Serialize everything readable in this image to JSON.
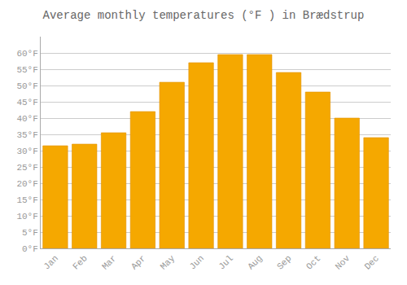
{
  "chart_data": {
    "type": "bar",
    "title": "Average monthly temperatures (°F ) in Brædstrup",
    "categories": [
      "Jan",
      "Feb",
      "Mar",
      "Apr",
      "May",
      "Jun",
      "Jul",
      "Aug",
      "Sep",
      "Oct",
      "Nov",
      "Dec"
    ],
    "values": [
      31.5,
      32.0,
      35.5,
      42.0,
      51.0,
      57.0,
      59.5,
      59.5,
      54.0,
      48.0,
      40.0,
      34.0
    ],
    "color": "#F5A800",
    "ylim": [
      0,
      65
    ],
    "yticks": [
      {
        "value": 0,
        "label": "0°F"
      },
      {
        "value": 5,
        "label": "5°F"
      },
      {
        "value": 10,
        "label": "10°F"
      },
      {
        "value": 15,
        "label": "15°F"
      },
      {
        "value": 20,
        "label": "20°F"
      },
      {
        "value": 25,
        "label": "25°F"
      },
      {
        "value": 30,
        "label": "30°F"
      },
      {
        "value": 35,
        "label": "35°F"
      },
      {
        "value": 40,
        "label": "40°F"
      },
      {
        "value": 45,
        "label": "45°F"
      },
      {
        "value": 50,
        "label": "50°F"
      },
      {
        "value": 55,
        "label": "55°F"
      },
      {
        "value": 60,
        "label": "60°F"
      }
    ],
    "grid": true
  }
}
